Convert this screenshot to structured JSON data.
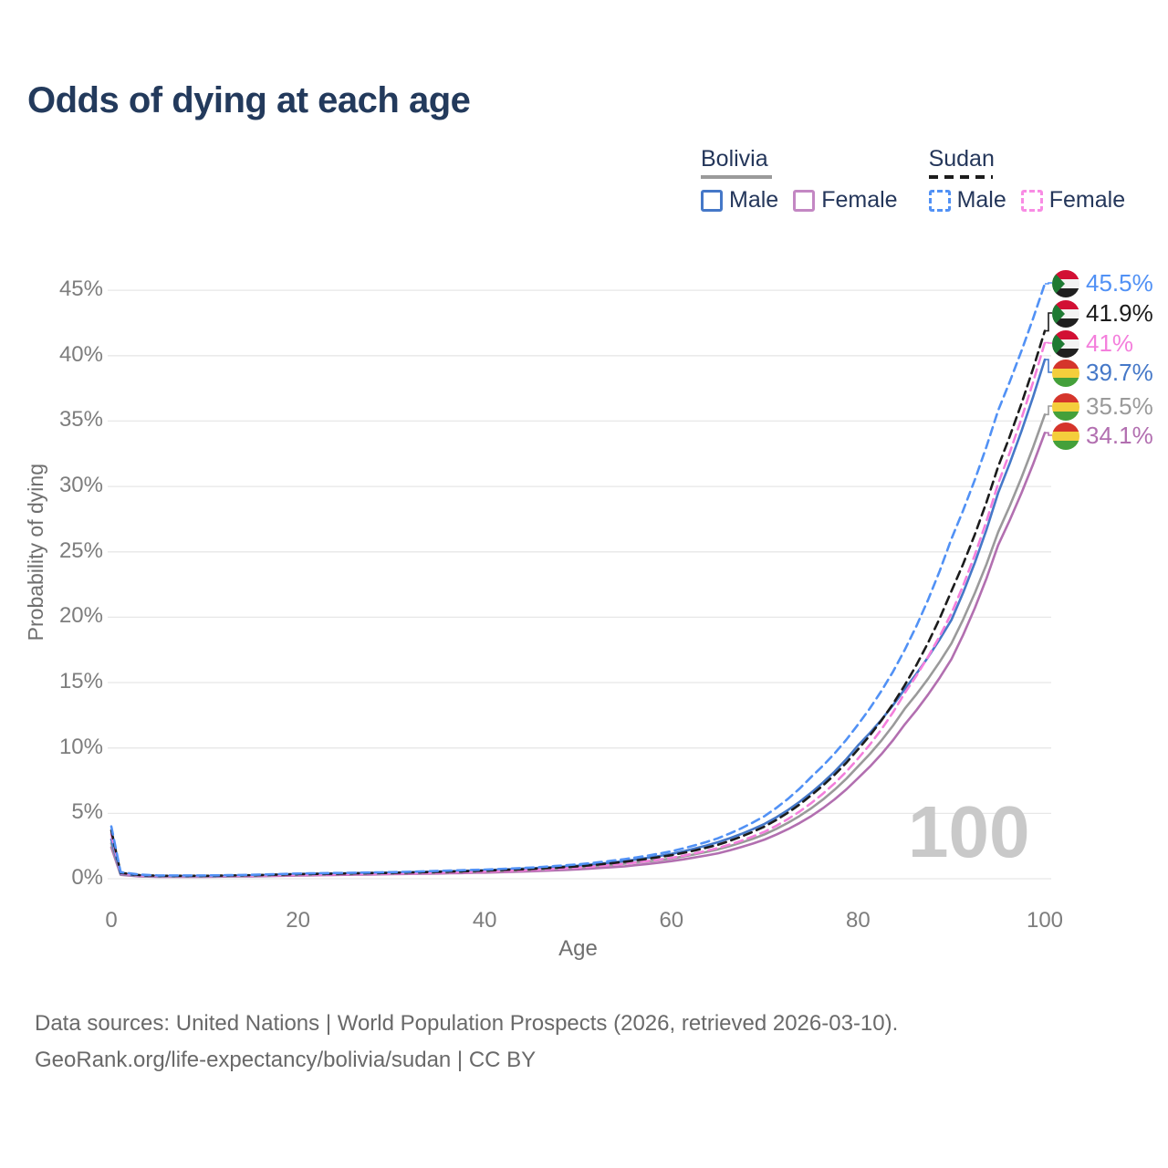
{
  "title": "Odds of dying at each age",
  "watermark": "100",
  "legend": {
    "bolivia": {
      "name": "Bolivia",
      "male": "Male",
      "female": "Female"
    },
    "sudan": {
      "name": "Sudan",
      "male": "Male",
      "female": "Female"
    }
  },
  "footer": {
    "line1": "Data sources: United Nations | World Population Prospects (2026, retrieved 2026-03-10).",
    "line2": "GeoRank.org/life-expectancy/bolivia/sudan | CC BY"
  },
  "colors": {
    "title_text": "#233A5C",
    "axis_text": "#7D7D7D",
    "gridline": "#E7E7E7",
    "watermark": "#C9C9C9",
    "sudan_male": "#5191F5",
    "sudan_both": "#1C1C1C",
    "sudan_female": "#F47FDC",
    "bolivia_male": "#4578C8",
    "bolivia_both": "#9A9A9A",
    "bolivia_female": "#B26FB0"
  },
  "flags": {
    "sudan": {
      "red": "#D21034",
      "white": "#F2F2F2",
      "black": "#202020",
      "green": "#1E7A33"
    },
    "bolivia": {
      "red": "#D5352B",
      "yellow": "#F4CE3C",
      "green": "#44A03A"
    }
  },
  "chart_data": {
    "type": "line",
    "title": "Odds of dying at each age",
    "xlabel": "Age",
    "ylabel": "Probability of dying",
    "xlim": [
      0,
      100
    ],
    "ylim_pct": [
      0,
      46
    ],
    "x_ticks": [
      0,
      20,
      40,
      60,
      80,
      100
    ],
    "y_ticks_pct": [
      0,
      5,
      10,
      15,
      20,
      25,
      30,
      35,
      40,
      45
    ],
    "grid": true,
    "legend_position": "top-right",
    "ages": [
      0,
      1,
      3,
      5,
      10,
      15,
      20,
      25,
      30,
      35,
      40,
      45,
      50,
      55,
      60,
      65,
      70,
      75,
      80,
      85,
      90,
      95,
      100
    ],
    "series": [
      {
        "id": "sudan-male",
        "name": "Sudan Male",
        "country": "Sudan",
        "sex": "Male",
        "color": "#5191F5",
        "dashed": true,
        "flag": "sudan",
        "end_label": "45.5%",
        "end_value_pct": 45.5,
        "values_pct": [
          4.0,
          0.5,
          0.32,
          0.25,
          0.25,
          0.3,
          0.4,
          0.45,
          0.5,
          0.6,
          0.7,
          0.85,
          1.1,
          1.5,
          2.1,
          3.1,
          4.8,
          7.8,
          11.8,
          17.5,
          26.0,
          35.8,
          45.5
        ]
      },
      {
        "id": "sudan-both",
        "name": "Sudan",
        "country": "Sudan",
        "sex": "Both",
        "color": "#1C1C1C",
        "dashed": true,
        "flag": "sudan",
        "end_label": "41.9%",
        "end_value_pct": 41.9,
        "values_pct": [
          3.7,
          0.45,
          0.28,
          0.22,
          0.22,
          0.27,
          0.35,
          0.4,
          0.45,
          0.52,
          0.62,
          0.75,
          0.95,
          1.3,
          1.8,
          2.6,
          4.0,
          6.4,
          9.9,
          14.8,
          22.0,
          31.5,
          41.9
        ]
      },
      {
        "id": "sudan-female",
        "name": "Sudan Female",
        "country": "Sudan",
        "sex": "Female",
        "color": "#F47FDC",
        "dashed": true,
        "flag": "sudan",
        "end_label": "41%",
        "end_value_pct": 41.0,
        "values_pct": [
          3.4,
          0.4,
          0.25,
          0.2,
          0.2,
          0.24,
          0.3,
          0.35,
          0.4,
          0.46,
          0.55,
          0.67,
          0.85,
          1.15,
          1.6,
          2.35,
          3.6,
          5.8,
          9.2,
          14.2,
          20.3,
          30.2,
          41.0
        ]
      },
      {
        "id": "bolivia-male",
        "name": "Bolivia Male",
        "country": "Bolivia",
        "sex": "Male",
        "color": "#4578C8",
        "dashed": false,
        "flag": "bolivia",
        "end_label": "39.7%",
        "end_value_pct": 39.7,
        "values_pct": [
          3.0,
          0.38,
          0.24,
          0.2,
          0.2,
          0.26,
          0.36,
          0.42,
          0.47,
          0.55,
          0.65,
          0.8,
          1.0,
          1.35,
          1.9,
          2.8,
          4.2,
          6.6,
          10.2,
          14.5,
          19.8,
          29.5,
          39.7
        ]
      },
      {
        "id": "bolivia-both",
        "name": "Bolivia",
        "country": "Bolivia",
        "sex": "Both",
        "color": "#9A9A9A",
        "dashed": false,
        "flag": "bolivia",
        "end_label": "35.5%",
        "end_value_pct": 35.5,
        "values_pct": [
          2.7,
          0.34,
          0.21,
          0.17,
          0.17,
          0.22,
          0.3,
          0.36,
          0.41,
          0.48,
          0.56,
          0.68,
          0.86,
          1.15,
          1.55,
          2.25,
          3.4,
          5.4,
          8.6,
          13.0,
          18.0,
          26.5,
          35.5
        ]
      },
      {
        "id": "bolivia-female",
        "name": "Bolivia Female",
        "country": "Bolivia",
        "sex": "Female",
        "color": "#B26FB0",
        "dashed": false,
        "flag": "bolivia",
        "end_label": "34.1%",
        "end_value_pct": 34.1,
        "values_pct": [
          2.4,
          0.3,
          0.18,
          0.15,
          0.15,
          0.18,
          0.25,
          0.3,
          0.35,
          0.4,
          0.47,
          0.57,
          0.72,
          0.95,
          1.35,
          1.95,
          3.0,
          4.8,
          7.7,
          11.8,
          16.8,
          25.5,
          34.1
        ]
      }
    ]
  }
}
